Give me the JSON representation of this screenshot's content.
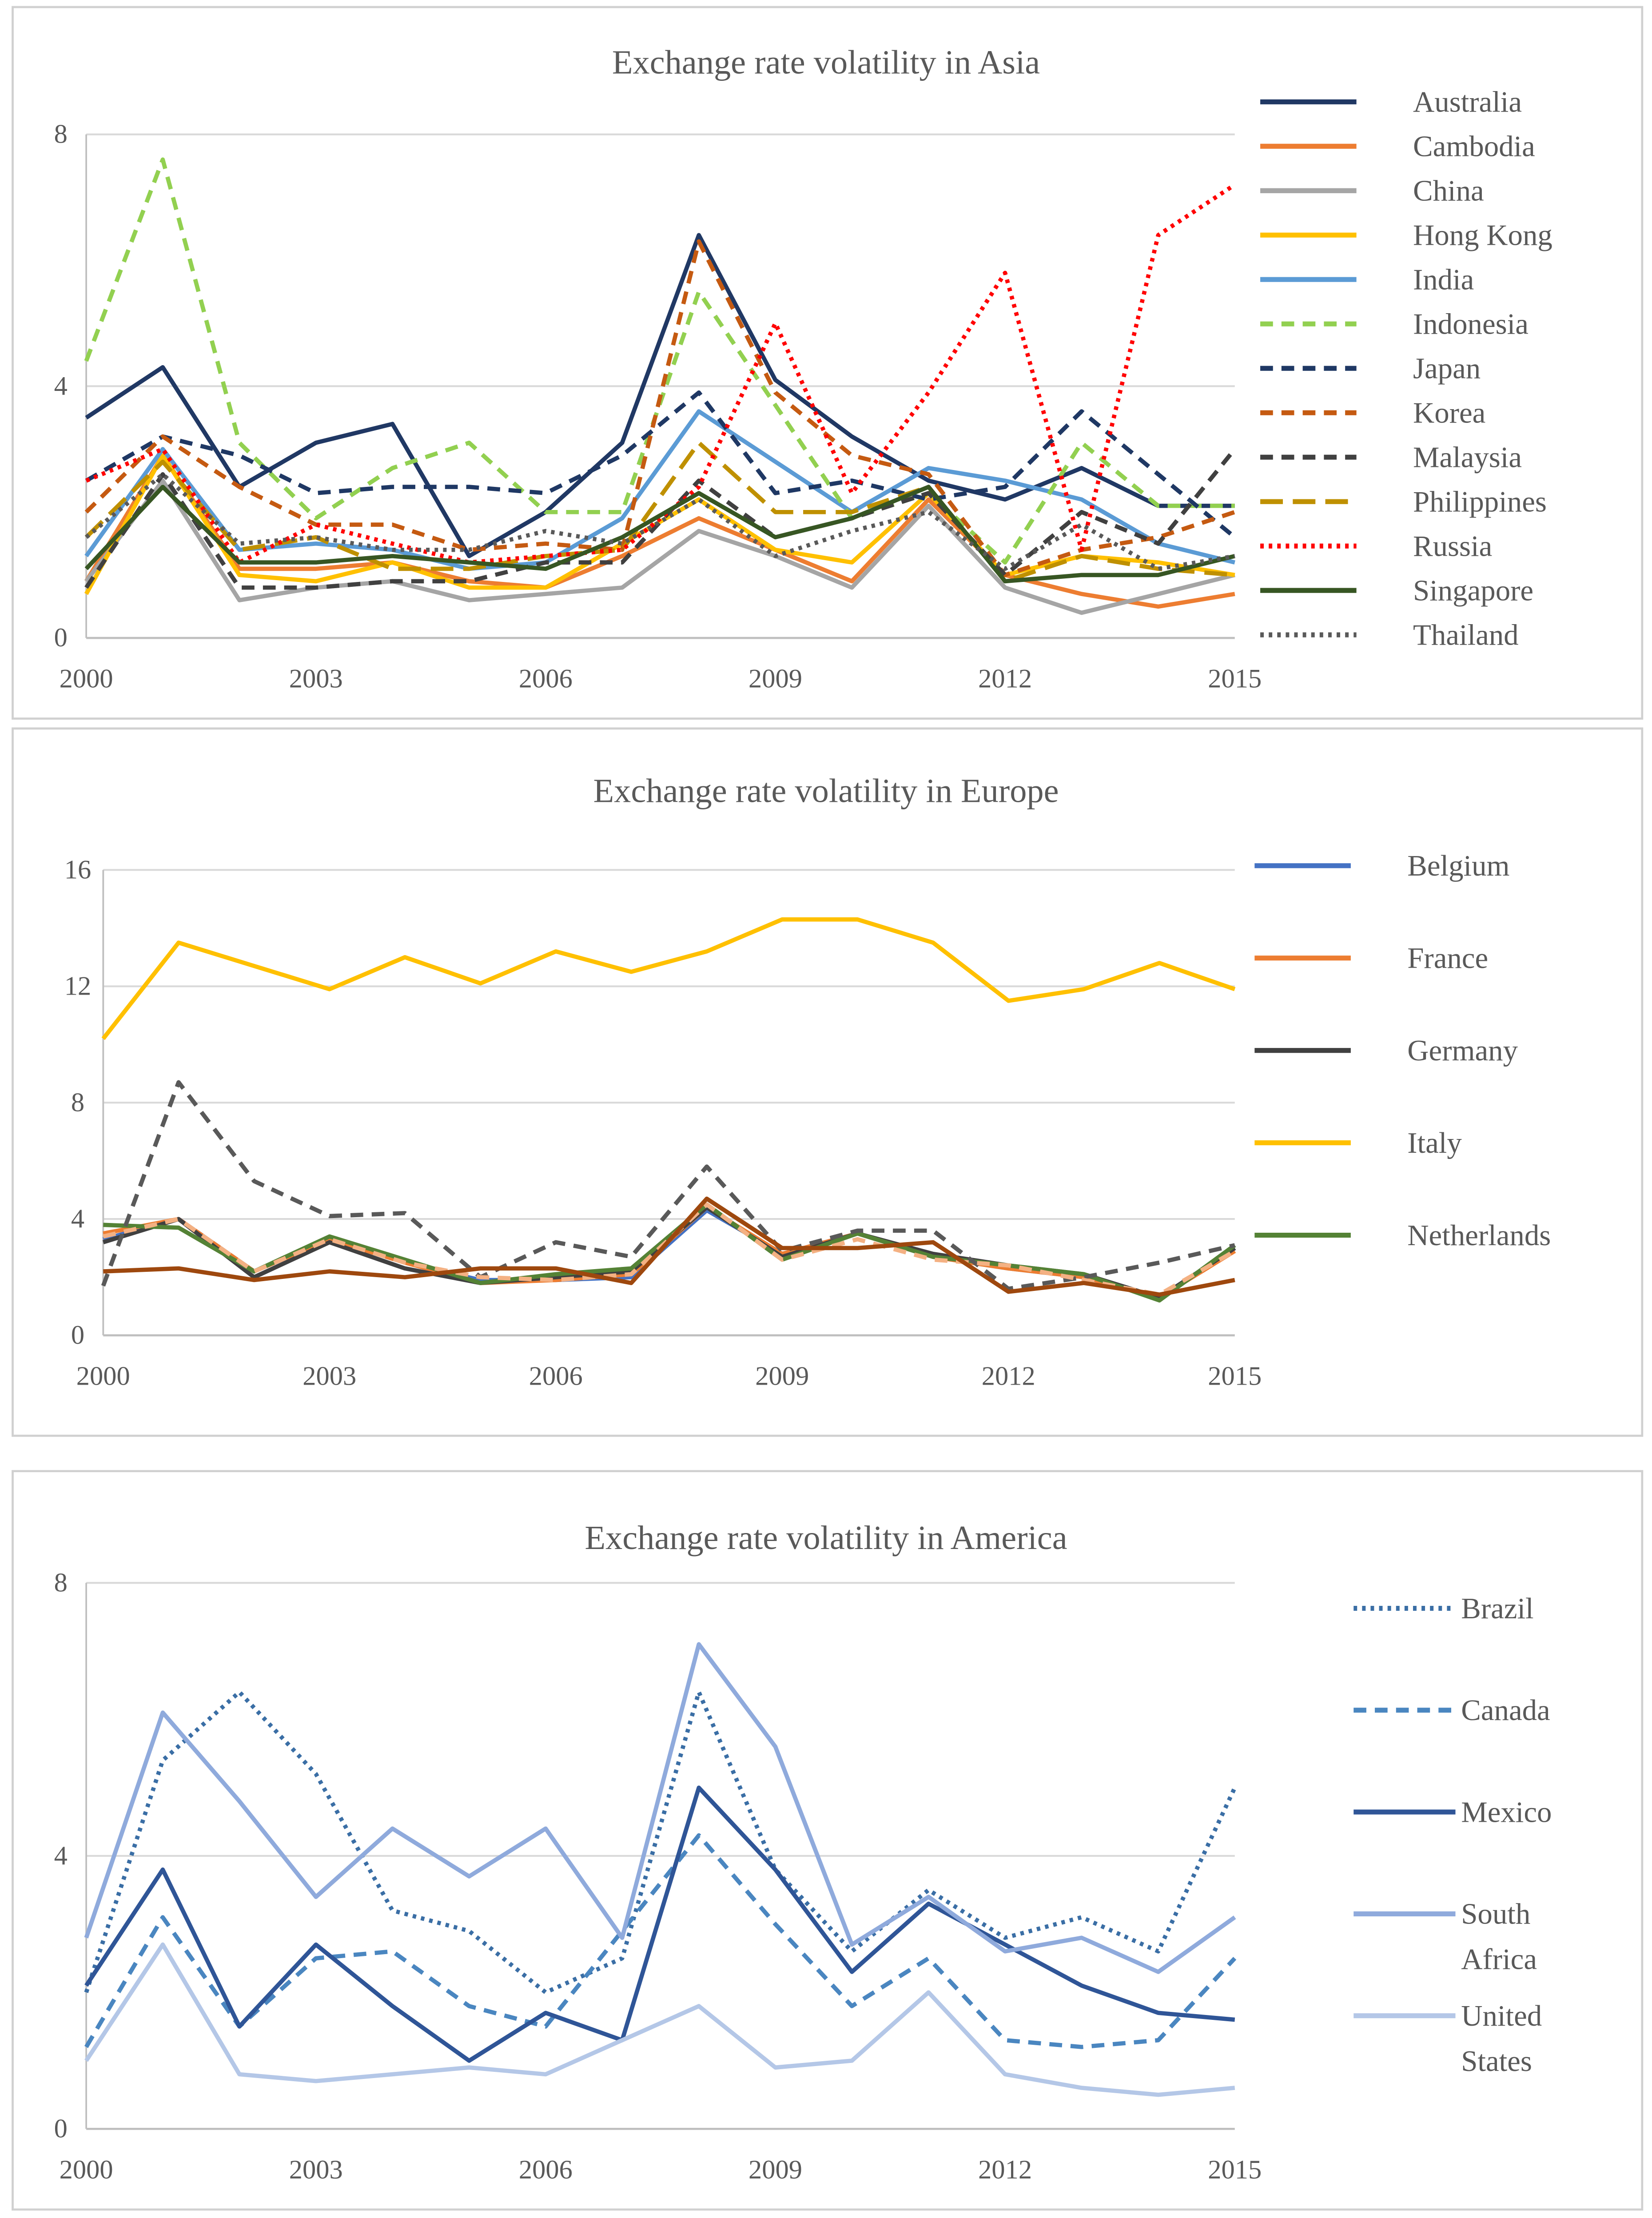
{
  "chart_data": [
    {
      "type": "line",
      "title": "Exchange rate volatility in Asia",
      "xlabel": "",
      "ylabel": "",
      "x": [
        2000,
        2001,
        2002,
        2003,
        2004,
        2005,
        2006,
        2007,
        2008,
        2009,
        2010,
        2011,
        2012,
        2013,
        2014,
        2015
      ],
      "x_tick_labels": [
        "2000",
        "2003",
        "2006",
        "2009",
        "2012",
        "2015"
      ],
      "y_tick_labels": [
        "0",
        "4",
        "8"
      ],
      "ylim": [
        0,
        8
      ],
      "grid": true,
      "legend": "right",
      "series": [
        {
          "name": "Australia",
          "color": "#203864",
          "dash": "solid",
          "values": [
            3.5,
            4.3,
            2.4,
            3.1,
            3.4,
            1.3,
            2.0,
            3.1,
            6.4,
            4.1,
            3.2,
            2.5,
            2.2,
            2.7,
            2.1,
            2.1
          ]
        },
        {
          "name": "Cambodia",
          "color": "#ed7d31",
          "dash": "solid",
          "values": [
            0.9,
            2.9,
            1.1,
            1.1,
            1.2,
            0.9,
            0.8,
            1.3,
            1.9,
            1.4,
            0.9,
            2.2,
            1.0,
            0.7,
            0.5,
            0.7
          ]
        },
        {
          "name": "China",
          "color": "#a5a5a5",
          "dash": "solid",
          "values": [
            0.9,
            2.5,
            0.6,
            0.8,
            0.9,
            0.6,
            0.7,
            0.8,
            1.7,
            1.3,
            0.8,
            2.1,
            0.8,
            0.4,
            0.7,
            1.0
          ]
        },
        {
          "name": "Hong Kong",
          "color": "#ffc000",
          "dash": "solid",
          "values": [
            0.7,
            2.9,
            1.0,
            0.9,
            1.2,
            0.8,
            0.8,
            1.5,
            2.2,
            1.4,
            1.2,
            2.3,
            1.0,
            1.3,
            1.2,
            1.0
          ]
        },
        {
          "name": "India",
          "color": "#5b9bd5",
          "dash": "solid",
          "values": [
            1.3,
            3.0,
            1.4,
            1.5,
            1.4,
            1.1,
            1.2,
            1.9,
            3.6,
            2.8,
            2.0,
            2.7,
            2.5,
            2.2,
            1.5,
            1.2
          ]
        },
        {
          "name": "Indonesia",
          "color": "#92d050",
          "dash": "dash",
          "values": [
            4.4,
            7.6,
            3.1,
            1.9,
            2.7,
            3.1,
            2.0,
            2.0,
            5.5,
            3.7,
            1.9,
            2.3,
            1.2,
            3.1,
            2.1,
            2.1
          ]
        },
        {
          "name": "Japan",
          "color": "#1f3864",
          "dash": "dash",
          "values": [
            2.5,
            3.2,
            2.9,
            2.3,
            2.4,
            2.4,
            2.3,
            2.9,
            3.9,
            2.3,
            2.5,
            2.2,
            2.4,
            3.6,
            2.6,
            1.6
          ]
        },
        {
          "name": "Korea",
          "color": "#c55a11",
          "dash": "dash",
          "values": [
            2.0,
            3.2,
            2.4,
            1.8,
            1.8,
            1.4,
            1.5,
            1.4,
            6.3,
            3.9,
            2.9,
            2.6,
            1.0,
            1.4,
            1.6,
            2.0
          ]
        },
        {
          "name": "Malaysia",
          "color": "#404040",
          "dash": "dash",
          "values": [
            0.8,
            2.6,
            0.8,
            0.8,
            0.9,
            0.9,
            1.2,
            1.2,
            2.5,
            1.6,
            1.9,
            2.3,
            1.0,
            2.0,
            1.5,
            3.0
          ]
        },
        {
          "name": "Philippines",
          "color": "#bf9000",
          "dash": "longdash",
          "values": [
            1.6,
            2.8,
            1.4,
            1.6,
            1.1,
            1.1,
            1.3,
            1.4,
            3.1,
            2.0,
            2.0,
            2.4,
            0.9,
            1.3,
            1.1,
            1.0
          ]
        },
        {
          "name": "Russia",
          "color": "#ff0000",
          "dash": "dot",
          "values": [
            2.5,
            3.0,
            1.2,
            1.8,
            1.5,
            1.2,
            1.3,
            1.4,
            2.4,
            5.0,
            2.3,
            3.9,
            5.8,
            1.4,
            6.4,
            7.2
          ]
        },
        {
          "name": "Singapore",
          "color": "#375623",
          "dash": "solid",
          "values": [
            1.1,
            2.4,
            1.2,
            1.2,
            1.3,
            1.2,
            1.1,
            1.6,
            2.3,
            1.6,
            1.9,
            2.4,
            0.9,
            1.0,
            1.0,
            1.3
          ]
        },
        {
          "name": "Thailand",
          "color": "#595959",
          "dash": "dot",
          "values": [
            1.6,
            2.6,
            1.5,
            1.6,
            1.4,
            1.4,
            1.7,
            1.5,
            2.2,
            1.3,
            1.7,
            2.0,
            1.1,
            1.8,
            1.1,
            1.3
          ]
        }
      ]
    },
    {
      "type": "line",
      "title": "Exchange rate volatility in Europe",
      "xlabel": "",
      "ylabel": "",
      "x": [
        2000,
        2001,
        2002,
        2003,
        2004,
        2005,
        2006,
        2007,
        2008,
        2009,
        2010,
        2011,
        2012,
        2013,
        2014,
        2015
      ],
      "x_tick_labels": [
        "2000",
        "2003",
        "2006",
        "2009",
        "2012",
        "2015"
      ],
      "y_tick_labels": [
        "0",
        "4",
        "8",
        "12",
        "16"
      ],
      "ylim": [
        0,
        16
      ],
      "grid": true,
      "legend": "right",
      "series": [
        {
          "name": "Belgium",
          "color": "#4472c4",
          "dash": "solid",
          "values": [
            3.3,
            4.0,
            2.2,
            3.3,
            2.5,
            1.9,
            1.9,
            2.0,
            4.3,
            2.8,
            3.5,
            2.7,
            2.3,
            2.0,
            1.3,
            3.0
          ]
        },
        {
          "name": "France",
          "color": "#ed7d31",
          "dash": "solid",
          "values": [
            3.5,
            4.0,
            2.2,
            3.3,
            2.5,
            1.8,
            1.9,
            2.1,
            4.4,
            2.8,
            3.5,
            2.7,
            2.3,
            2.0,
            1.3,
            2.9
          ]
        },
        {
          "name": "Germany",
          "color": "#404040",
          "dash": "solid",
          "values": [
            3.2,
            4.0,
            2.0,
            3.2,
            2.3,
            1.8,
            2.0,
            2.2,
            4.4,
            2.7,
            3.5,
            2.8,
            2.4,
            2.1,
            1.3,
            3.0
          ]
        },
        {
          "name": "Italy",
          "color": "#ffc000",
          "dash": "solid",
          "values": [
            10.2,
            13.5,
            12.7,
            11.9,
            13.0,
            12.1,
            13.2,
            12.5,
            13.2,
            14.3,
            14.3,
            13.5,
            11.5,
            11.9,
            12.8,
            11.9
          ]
        },
        {
          "name": "Netherlands",
          "color": "#548235",
          "dash": "solid",
          "values": [
            3.8,
            3.7,
            2.2,
            3.4,
            2.6,
            1.8,
            2.1,
            2.3,
            4.5,
            2.6,
            3.5,
            2.7,
            2.4,
            2.1,
            1.2,
            3.1
          ]
        },
        {
          "name": "",
          "color": "#595959",
          "dash": "dash",
          "values": [
            1.7,
            8.7,
            5.3,
            4.1,
            4.2,
            2.0,
            3.2,
            2.7,
            5.8,
            2.9,
            3.6,
            3.6,
            1.6,
            2.0,
            2.5,
            3.1
          ]
        },
        {
          "name": "",
          "color": "#f4b183",
          "dash": "dash",
          "values": [
            3.4,
            4.0,
            2.2,
            3.3,
            2.5,
            2.0,
            1.9,
            2.1,
            4.5,
            2.6,
            3.3,
            2.6,
            2.4,
            1.9,
            1.4,
            2.9
          ]
        },
        {
          "name": "",
          "color": "#9e480e",
          "dash": "solid",
          "values": [
            2.2,
            2.3,
            1.9,
            2.2,
            2.0,
            2.3,
            2.3,
            1.8,
            4.7,
            3.0,
            3.0,
            3.2,
            1.5,
            1.8,
            1.4,
            1.9
          ]
        }
      ]
    },
    {
      "type": "line",
      "title": "Exchange rate volatility in America",
      "xlabel": "",
      "ylabel": "",
      "x": [
        2000,
        2001,
        2002,
        2003,
        2004,
        2005,
        2006,
        2007,
        2008,
        2009,
        2010,
        2011,
        2012,
        2013,
        2014,
        2015
      ],
      "x_tick_labels": [
        "2000",
        "2003",
        "2006",
        "2009",
        "2012",
        "2015"
      ],
      "y_tick_labels": [
        "0",
        "4",
        "8"
      ],
      "ylim": [
        0,
        8
      ],
      "grid": true,
      "legend": "right",
      "series": [
        {
          "name": "Brazil",
          "color": "#3a6ea5",
          "dash": "dot",
          "values": [
            2.0,
            5.4,
            6.4,
            5.2,
            3.2,
            2.9,
            2.0,
            2.5,
            6.4,
            3.8,
            2.6,
            3.5,
            2.8,
            3.1,
            2.6,
            5.0
          ]
        },
        {
          "name": "Canada",
          "color": "#4a86c0",
          "dash": "dash",
          "values": [
            1.2,
            3.1,
            1.5,
            2.5,
            2.6,
            1.8,
            1.5,
            2.9,
            4.3,
            3.0,
            1.8,
            2.5,
            1.3,
            1.2,
            1.3,
            2.5
          ]
        },
        {
          "name": "Mexico",
          "color": "#2f5597",
          "dash": "solid",
          "values": [
            2.1,
            3.8,
            1.5,
            2.7,
            1.8,
            1.0,
            1.7,
            1.3,
            5.0,
            3.8,
            2.3,
            3.3,
            2.7,
            2.1,
            1.7,
            1.6
          ]
        },
        {
          "name": "South Africa",
          "color": "#8faadc",
          "dash": "solid",
          "values": [
            2.8,
            6.1,
            4.8,
            3.4,
            4.4,
            3.7,
            4.4,
            2.8,
            7.1,
            5.6,
            2.7,
            3.4,
            2.6,
            2.8,
            2.3,
            3.1
          ]
        },
        {
          "name": "United States",
          "color": "#b4c7e7",
          "dash": "solid",
          "values": [
            1.0,
            2.7,
            0.8,
            0.7,
            0.8,
            0.9,
            0.8,
            1.3,
            1.8,
            0.9,
            1.0,
            2.0,
            0.8,
            0.6,
            0.5,
            0.6
          ]
        }
      ]
    }
  ]
}
